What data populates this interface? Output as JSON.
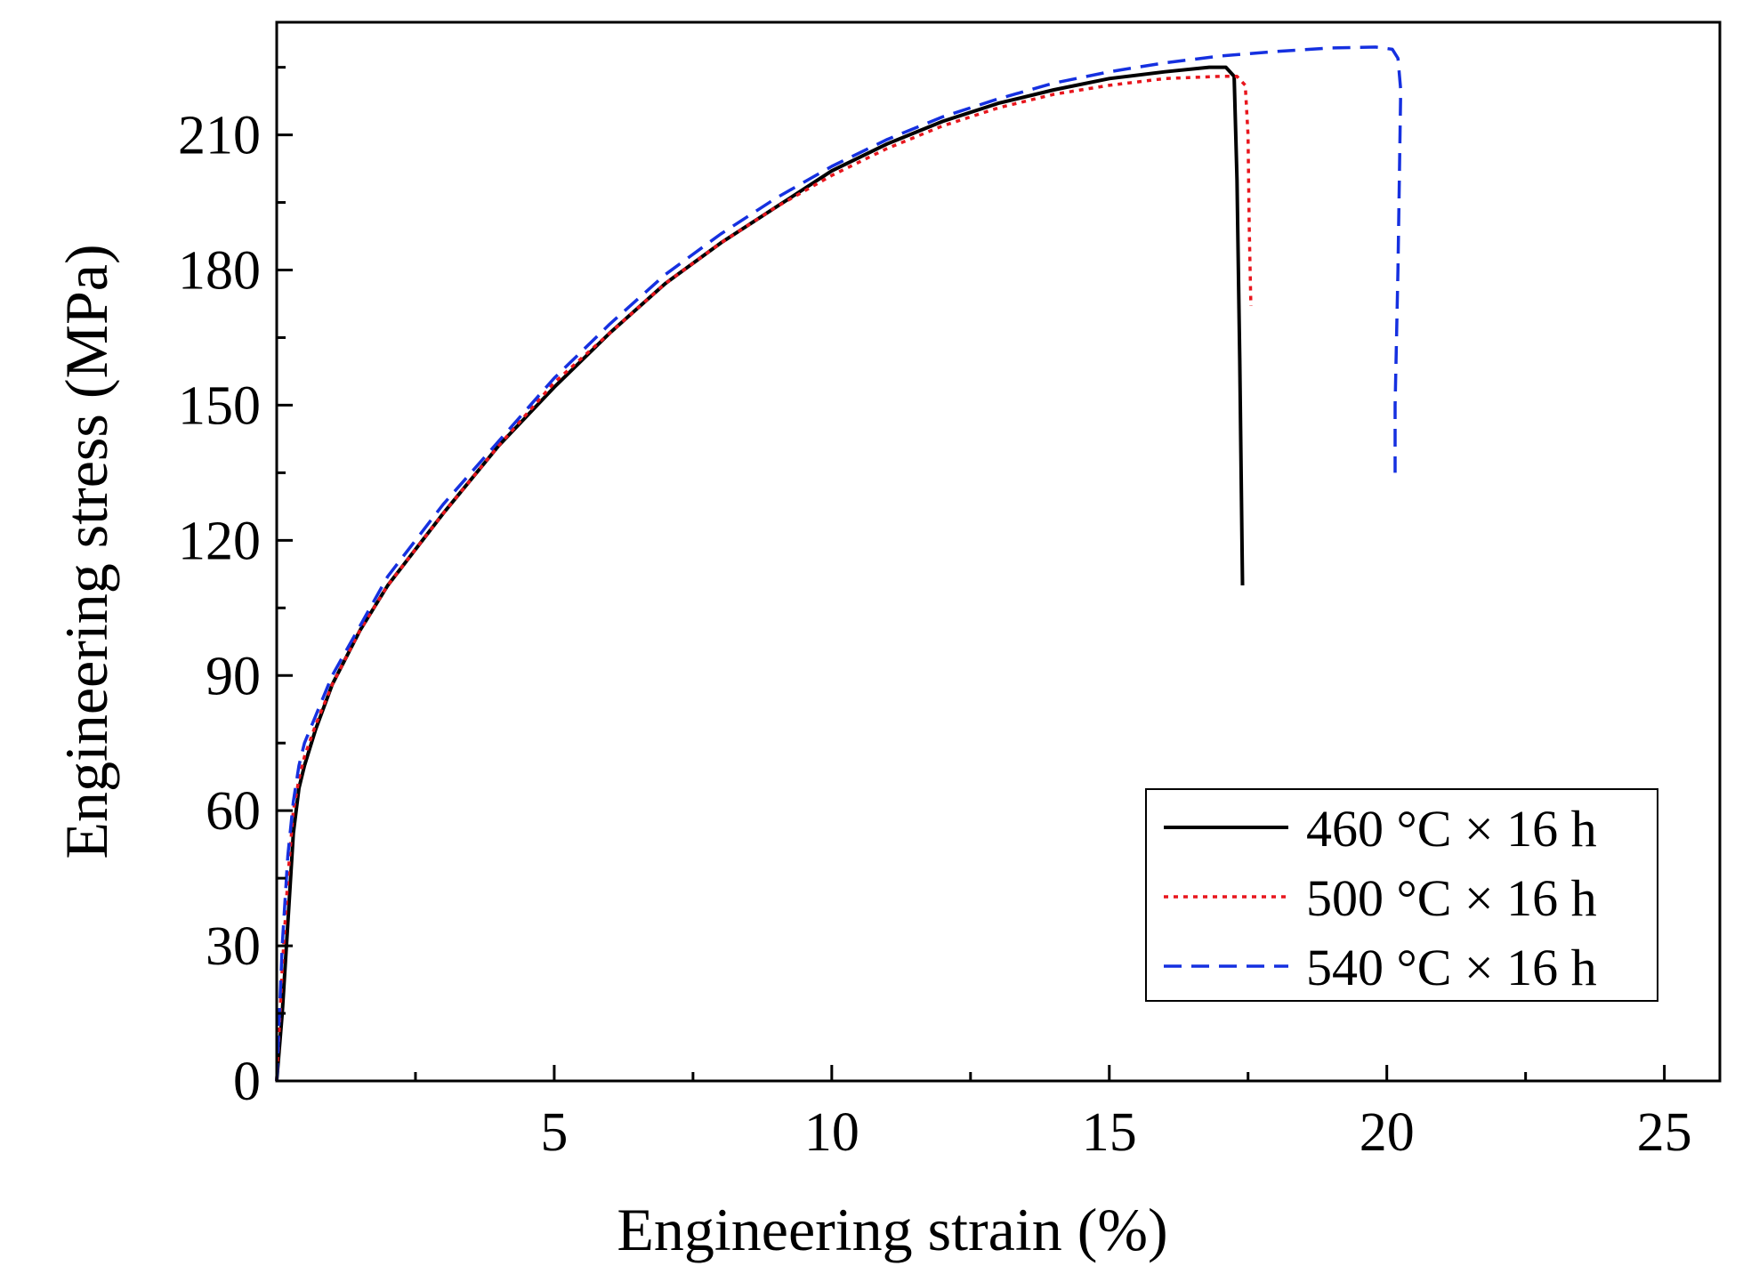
{
  "chart_data": {
    "type": "line",
    "xlabel": "Engineering strain (%)",
    "ylabel": "Engineering stress (MPa)",
    "xlim": [
      0,
      26
    ],
    "ylim": [
      0,
      235
    ],
    "x_ticks": [
      5,
      10,
      15,
      20,
      25
    ],
    "x_tick_labels": [
      "5",
      "10",
      "15",
      "20",
      "25"
    ],
    "x_minor_step": 2.5,
    "y_ticks": [
      0,
      30,
      60,
      90,
      120,
      150,
      180,
      210
    ],
    "y_tick_labels": [
      "0",
      "30",
      "60",
      "90",
      "120",
      "150",
      "180",
      "210"
    ],
    "y_minor_step": 15,
    "grid": false,
    "legend_position": "bottom-right",
    "series": [
      {
        "name": "460 °C × 16 h",
        "color": "#000000",
        "style": "solid",
        "x": [
          0,
          0.1,
          0.2,
          0.3,
          0.4,
          0.5,
          0.7,
          1.0,
          1.5,
          2.0,
          3.0,
          4.0,
          5.0,
          6.0,
          7.0,
          8.0,
          9.0,
          10.0,
          11.0,
          12.0,
          13.0,
          14.0,
          15.0,
          16.0,
          16.8,
          17.1,
          17.25,
          17.3,
          17.35,
          17.4
        ],
        "y": [
          0,
          15,
          35,
          55,
          65,
          70,
          78,
          88,
          100,
          110,
          126,
          141,
          154,
          166,
          177,
          186,
          194,
          202,
          208,
          213,
          217,
          220,
          222.5,
          224,
          225,
          225,
          223,
          200,
          160,
          110
        ]
      },
      {
        "name": "500 °C × 16 h",
        "color": "#e8161d",
        "style": "dotted",
        "x": [
          0,
          0.1,
          0.2,
          0.3,
          0.4,
          0.5,
          0.7,
          1.0,
          1.5,
          2.0,
          3.0,
          4.0,
          5.0,
          6.0,
          7.0,
          8.0,
          9.0,
          10.0,
          11.0,
          12.0,
          13.0,
          14.0,
          15.0,
          16.0,
          17.0,
          17.3,
          17.45,
          17.5,
          17.52,
          17.55
        ],
        "y": [
          0,
          25,
          45,
          60,
          67,
          72,
          79,
          88,
          100,
          110,
          126,
          141,
          155,
          166,
          177,
          186,
          194,
          201,
          207,
          212,
          216,
          219,
          221,
          222.5,
          223,
          223,
          221,
          210,
          190,
          172
        ]
      },
      {
        "name": "540 °C × 16 h",
        "color": "#1530e0",
        "style": "dashed",
        "x": [
          0,
          0.1,
          0.2,
          0.3,
          0.4,
          0.5,
          0.7,
          1.0,
          1.5,
          2.0,
          3.0,
          4.0,
          5.0,
          6.0,
          7.0,
          8.0,
          9.0,
          10.0,
          11.0,
          12.0,
          13.0,
          14.0,
          15.0,
          16.0,
          17.0,
          18.0,
          19.0,
          19.8,
          20.1,
          20.2,
          20.25,
          20.2,
          20.15,
          20.15
        ],
        "y": [
          0,
          30,
          50,
          62,
          70,
          75,
          81,
          90,
          101,
          112,
          128,
          142,
          156,
          168,
          179,
          188,
          196,
          203,
          209,
          214,
          218,
          221.5,
          224,
          226,
          227.5,
          228.5,
          229.3,
          229.5,
          229,
          227,
          220,
          180,
          150,
          135
        ]
      }
    ]
  }
}
